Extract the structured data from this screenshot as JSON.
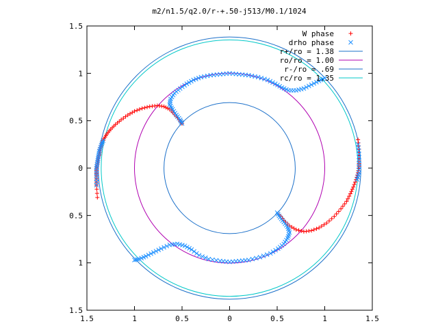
{
  "chart_data": {
    "type": "scatter",
    "title": "m2/n1.5/q2.0/r-+.50-j513/M0.1/1024",
    "xlabel": "",
    "ylabel": "",
    "xlim": [
      -1.5,
      1.5
    ],
    "ylim": [
      -1.5,
      1.5
    ],
    "x_tick_labels": [
      "1.5",
      "1",
      "0.5",
      "0",
      "0.5",
      "1",
      "1.5"
    ],
    "x_tick_values": [
      -1.5,
      -1,
      -0.5,
      0,
      0.5,
      1,
      1.5
    ],
    "y_tick_labels": [
      "1.5",
      "1",
      "0.5",
      "0",
      "0.5",
      "1",
      "1.5"
    ],
    "y_tick_values": [
      1.5,
      1,
      0.5,
      0,
      -0.5,
      -1,
      -1.5
    ],
    "grid": false,
    "legend_position": "top-right",
    "circles": [
      {
        "name": "r+/ro = 1.38",
        "radius": 1.38,
        "color": "#1a6fc9"
      },
      {
        "name": "ro/ro = 1.00",
        "radius": 1.0,
        "color": "#b000b0"
      },
      {
        "name": "r-/ro = .69",
        "radius": 0.69,
        "color": "#1a6fc9"
      },
      {
        "name": "rc/ro = 1.35",
        "radius": 1.35,
        "color": "#00c8c8"
      }
    ],
    "series": [
      {
        "name": "W phase",
        "marker": "+",
        "color": "#ff0000",
        "points": [
          [
            -1.39,
            -0.31
          ],
          [
            -1.4,
            -0.18
          ],
          [
            -1.4,
            -0.08
          ],
          [
            -1.4,
            0.0
          ],
          [
            -1.39,
            0.05
          ],
          [
            -1.38,
            0.1
          ],
          [
            -1.37,
            0.15
          ],
          [
            -1.36,
            0.2
          ],
          [
            -1.34,
            0.26
          ],
          [
            -1.32,
            0.31
          ],
          [
            -1.29,
            0.36
          ],
          [
            -1.25,
            0.41
          ],
          [
            -1.2,
            0.46
          ],
          [
            -1.14,
            0.51
          ],
          [
            -1.07,
            0.56
          ],
          [
            -1.0,
            0.6
          ],
          [
            -0.92,
            0.63
          ],
          [
            -0.84,
            0.65
          ],
          [
            -0.76,
            0.66
          ],
          [
            -0.69,
            0.65
          ],
          [
            -0.63,
            0.62
          ],
          [
            -0.58,
            0.57
          ],
          [
            -0.53,
            0.51
          ],
          [
            -0.5,
            0.47
          ],
          [
            1.35,
            0.3
          ],
          [
            1.36,
            0.2
          ],
          [
            1.36,
            0.1
          ],
          [
            1.36,
            0.02
          ],
          [
            1.35,
            -0.05
          ],
          [
            1.33,
            -0.12
          ],
          [
            1.3,
            -0.2
          ],
          [
            1.27,
            -0.27
          ],
          [
            1.23,
            -0.35
          ],
          [
            1.17,
            -0.43
          ],
          [
            1.1,
            -0.51
          ],
          [
            1.02,
            -0.58
          ],
          [
            0.94,
            -0.63
          ],
          [
            0.86,
            -0.66
          ],
          [
            0.78,
            -0.67
          ],
          [
            0.7,
            -0.65
          ],
          [
            0.63,
            -0.61
          ],
          [
            0.57,
            -0.55
          ],
          [
            0.52,
            -0.49
          ]
        ]
      },
      {
        "name": "drho phase",
        "marker": "x",
        "color": "#1e90ff",
        "points": [
          [
            -1.4,
            -0.18
          ],
          [
            -1.4,
            -0.08
          ],
          [
            -1.4,
            0.0
          ],
          [
            -1.39,
            0.06
          ],
          [
            -1.38,
            0.12
          ],
          [
            -1.37,
            0.18
          ],
          [
            -1.35,
            0.24
          ],
          [
            -1.33,
            0.29
          ],
          [
            -0.5,
            0.47
          ],
          [
            -0.52,
            0.51
          ],
          [
            -0.56,
            0.56
          ],
          [
            -0.6,
            0.62
          ],
          [
            -0.63,
            0.67
          ],
          [
            -0.62,
            0.73
          ],
          [
            -0.58,
            0.79
          ],
          [
            -0.52,
            0.84
          ],
          [
            -0.45,
            0.89
          ],
          [
            -0.38,
            0.93
          ],
          [
            -0.3,
            0.96
          ],
          [
            -0.2,
            0.98
          ],
          [
            -0.1,
            0.99
          ],
          [
            0.0,
            1.0
          ],
          [
            0.1,
            0.99
          ],
          [
            0.2,
            0.98
          ],
          [
            0.3,
            0.96
          ],
          [
            0.4,
            0.93
          ],
          [
            0.48,
            0.89
          ],
          [
            0.55,
            0.85
          ],
          [
            0.62,
            0.82
          ],
          [
            0.7,
            0.82
          ],
          [
            0.78,
            0.84
          ],
          [
            0.86,
            0.88
          ],
          [
            0.94,
            0.92
          ],
          [
            1.0,
            0.95
          ],
          [
            1.35,
            0.25
          ],
          [
            1.36,
            0.15
          ],
          [
            1.36,
            0.05
          ],
          [
            1.36,
            -0.05
          ],
          [
            1.34,
            -0.12
          ],
          [
            0.5,
            -0.47
          ],
          [
            0.53,
            -0.52
          ],
          [
            0.57,
            -0.57
          ],
          [
            0.61,
            -0.62
          ],
          [
            0.63,
            -0.68
          ],
          [
            0.61,
            -0.74
          ],
          [
            0.57,
            -0.8
          ],
          [
            0.51,
            -0.85
          ],
          [
            0.43,
            -0.9
          ],
          [
            0.32,
            -0.94
          ],
          [
            0.2,
            -0.97
          ],
          [
            0.1,
            -0.98
          ],
          [
            0.0,
            -0.99
          ],
          [
            -0.1,
            -0.98
          ],
          [
            -0.22,
            -0.96
          ],
          [
            -0.32,
            -0.92
          ],
          [
            -0.4,
            -0.86
          ],
          [
            -0.47,
            -0.82
          ],
          [
            -0.55,
            -0.8
          ],
          [
            -0.63,
            -0.81
          ],
          [
            -0.72,
            -0.85
          ],
          [
            -0.8,
            -0.89
          ],
          [
            -0.88,
            -0.93
          ],
          [
            -0.95,
            -0.96
          ],
          [
            -1.0,
            -0.97
          ]
        ]
      }
    ]
  }
}
